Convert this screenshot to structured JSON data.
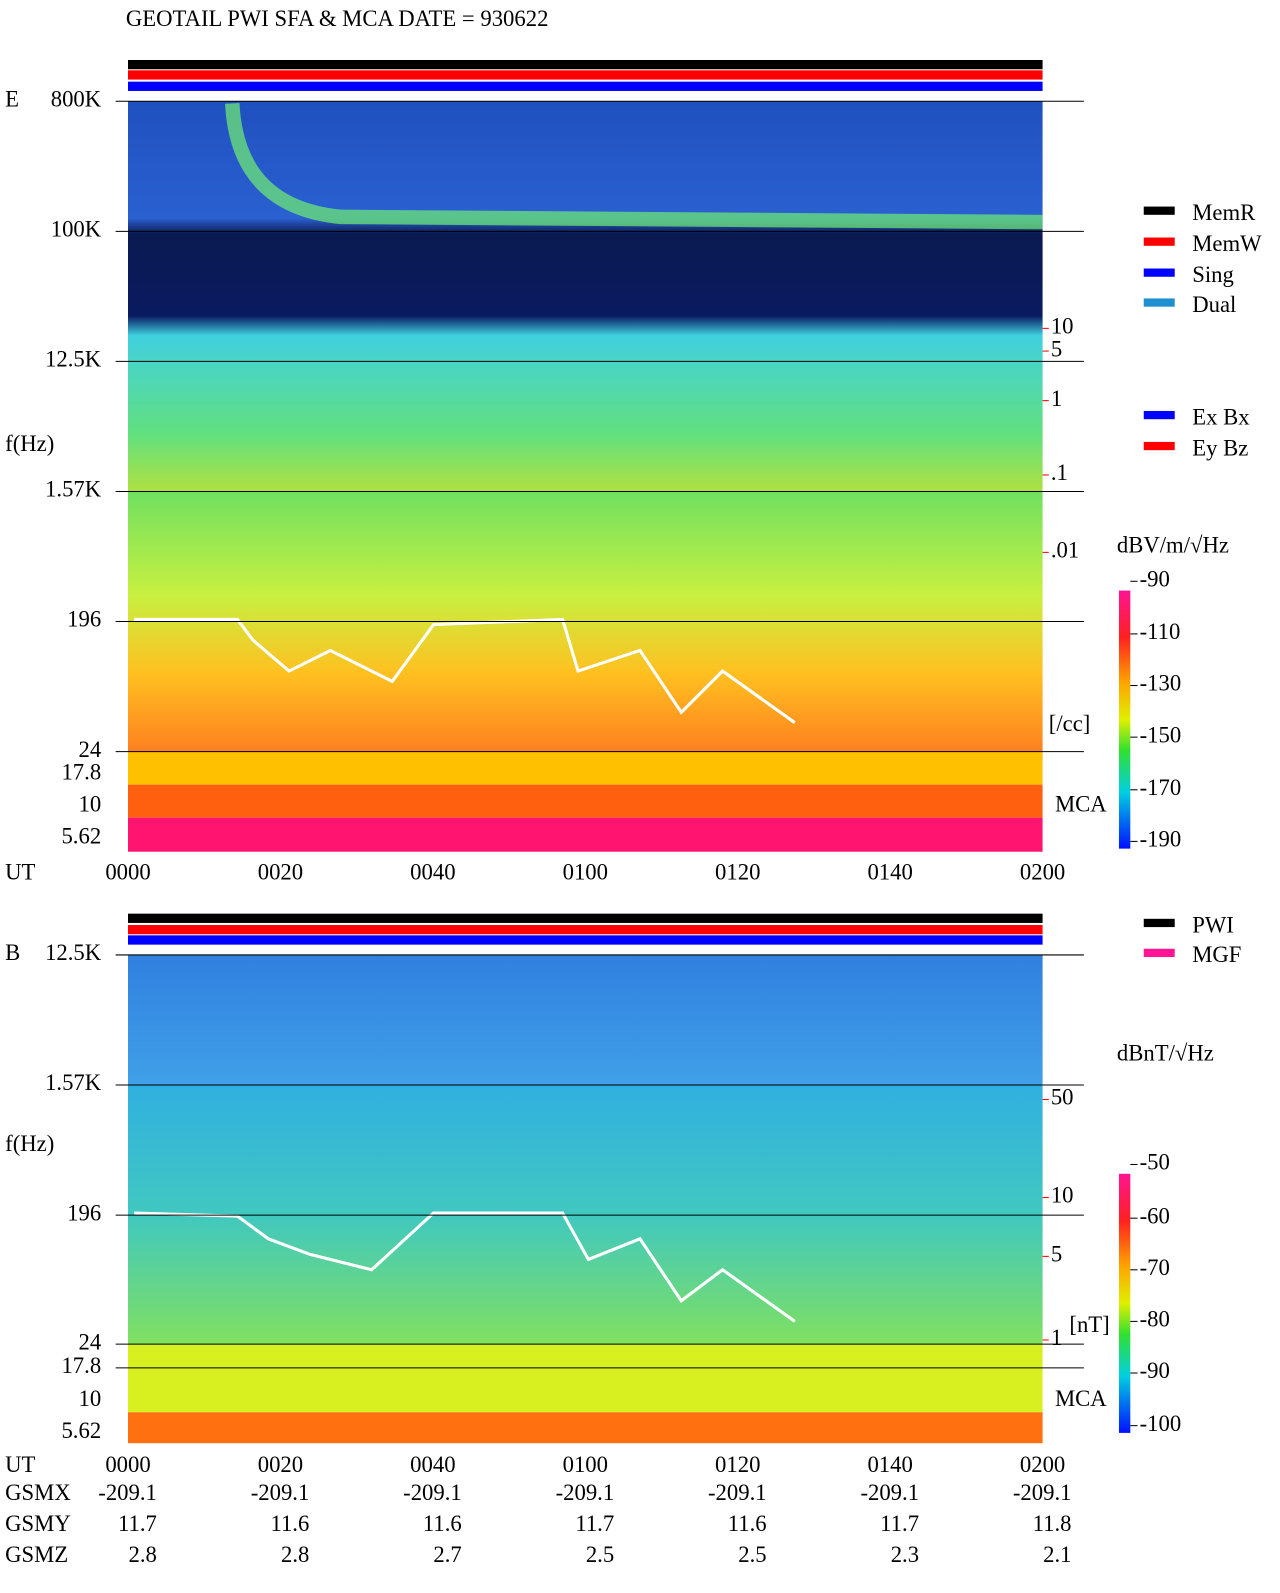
{
  "title": "GEOTAIL  PWI SFA & MCA   DATE = 930622",
  "panels": [
    {
      "label": "E",
      "y_label": "f(Hz)",
      "freq_ticks": [
        "800K",
        "100K",
        "12.5K",
        "1.57K",
        "196",
        "24",
        "17.8",
        "10",
        "5.62"
      ],
      "time_label": "UT",
      "time_ticks": [
        "0000",
        "0020",
        "0040",
        "0100",
        "0120",
        "0140",
        "0200"
      ],
      "right_ticks": [
        "10",
        "5",
        "1",
        ".1",
        ".01"
      ],
      "right_unit": "[/cc]",
      "mca": "MCA",
      "legend": [
        {
          "name": "MemR",
          "color": "#000000"
        },
        {
          "name": "MemW",
          "color": "#ff0000"
        },
        {
          "name": "Sing",
          "color": "#0000ff"
        },
        {
          "name": "Dual",
          "color": "#1e90d0"
        }
      ],
      "legend2": [
        {
          "name": "Ex Bx",
          "color": "#0000ff"
        },
        {
          "name": "Ey Bz",
          "color": "#ff0000"
        }
      ],
      "colorbar_unit": "dBV/m/√Hz",
      "colorbar_ticks": [
        "-90",
        "-110",
        "-130",
        "-150",
        "-170",
        "-190"
      ]
    },
    {
      "label": "B",
      "y_label": "f(Hz)",
      "freq_ticks": [
        "12.5K",
        "1.57K",
        "196",
        "24",
        "17.8",
        "10",
        "5.62"
      ],
      "time_label": "UT",
      "time_ticks": [
        "0000",
        "0020",
        "0040",
        "0100",
        "0120",
        "0140",
        "0200"
      ],
      "right_ticks": [
        "50",
        "10",
        "5",
        "1"
      ],
      "right_unit": "[nT]",
      "mca": "MCA",
      "legend": [
        {
          "name": "PWI",
          "color": "#000000"
        },
        {
          "name": "MGF",
          "color": "#ff1493"
        }
      ],
      "colorbar_unit": "dBnT/√Hz",
      "colorbar_ticks": [
        "-50",
        "-60",
        "-70",
        "-80",
        "-90",
        "-100"
      ]
    }
  ],
  "orbit": {
    "rows": [
      {
        "name": "GSMX",
        "values": [
          "-209.1",
          "-209.1",
          "-209.1",
          "-209.1",
          "-209.1",
          "-209.1",
          "-209.1"
        ]
      },
      {
        "name": "GSMY",
        "values": [
          "11.7",
          "11.6",
          "11.6",
          "11.7",
          "11.6",
          "11.7",
          "11.8"
        ]
      },
      {
        "name": "GSMZ",
        "values": [
          "2.8",
          "2.8",
          "2.7",
          "2.5",
          "2.5",
          "2.3",
          "2.1"
        ]
      }
    ]
  }
}
